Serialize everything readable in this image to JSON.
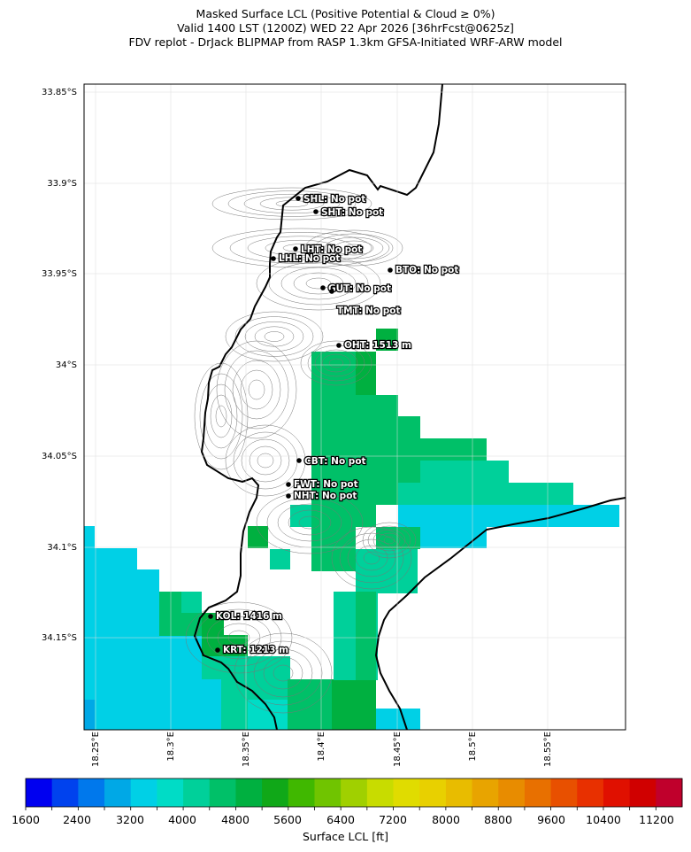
{
  "title": {
    "line1": "Masked Surface LCL (Positive Potential & Cloud ≥ 0%)",
    "line2": "Valid 1400 LST (1200Z) WED 22 Apr 2026 [36hrFcst@0625z]",
    "line3": "FDV replot - DrJack BLIPMAP from RASP 1.3km GFSA-Initiated WRF-ARW model"
  },
  "axes": {
    "y_ticks": [
      "33.85°S",
      "33.9°S",
      "33.95°S",
      "34°S",
      "34.05°S",
      "34.1°S",
      "34.15°S"
    ],
    "x_ticks": [
      "18.25°E",
      "18.3°E",
      "18.35°E",
      "18.4°E",
      "18.45°E",
      "18.5°E",
      "18.55°E"
    ]
  },
  "stations": [
    {
      "id": "SHL",
      "label": "SHL: No pot"
    },
    {
      "id": "SHT",
      "label": "SHT: No pot"
    },
    {
      "id": "LHT",
      "label": "LHT: No pot"
    },
    {
      "id": "LHL",
      "label": "LHL: No pot"
    },
    {
      "id": "BTO",
      "label": "BTO: No pot"
    },
    {
      "id": "GUT",
      "label": "GUT: No pot"
    },
    {
      "id": "TMT",
      "label": "TMT: No pot"
    },
    {
      "id": "OHT",
      "label": "OHT: 1513 m"
    },
    {
      "id": "CBT",
      "label": "CBT: No pot"
    },
    {
      "id": "FWT",
      "label": "FWT: No pot"
    },
    {
      "id": "NHT",
      "label": "NHT: No pot"
    },
    {
      "id": "KOL",
      "label": "KOL: 1416 m"
    },
    {
      "id": "KRT",
      "label": "KRT: 1213 m"
    }
  ],
  "colorbar": {
    "title": "Surface LCL [ft]",
    "ticks": [
      "1600",
      "2400",
      "3200",
      "4000",
      "4800",
      "5600",
      "6400",
      "7200",
      "8000",
      "8800",
      "9600",
      "10400",
      "11200"
    ],
    "colors": [
      "#0000f0",
      "#0042ee",
      "#0078ec",
      "#00a8e6",
      "#00d0e6",
      "#00dcc6",
      "#00d09a",
      "#00c068",
      "#00b040",
      "#10a818",
      "#40b800",
      "#70c400",
      "#a0d000",
      "#c8dc00",
      "#e0dc00",
      "#e8d000",
      "#e8bc00",
      "#e8a400",
      "#e88c00",
      "#e87000",
      "#e85000",
      "#e83000",
      "#e01000",
      "#d00000",
      "#c0002c"
    ]
  }
}
